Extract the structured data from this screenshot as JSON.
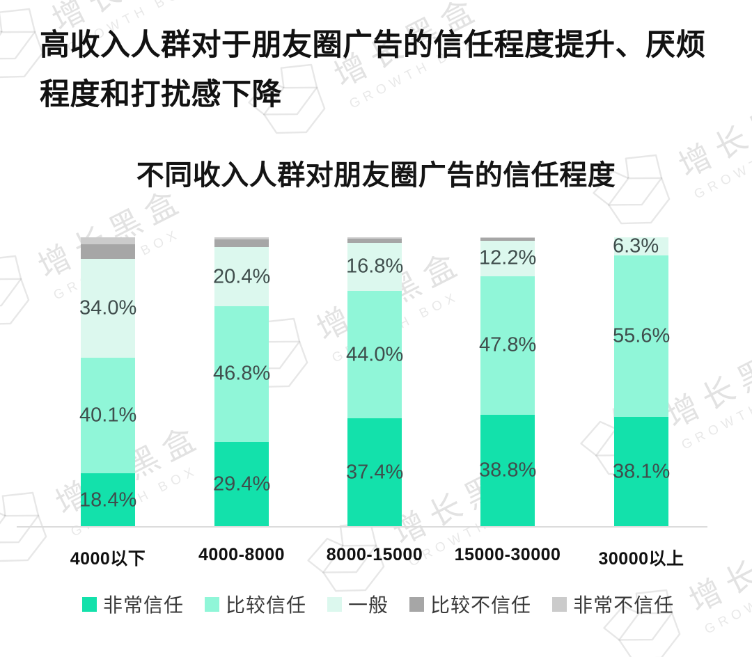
{
  "header": {
    "title_line1": "高收入人群对于朋友圈广告的信任程度提升、厌烦",
    "title_line2": "程度和打扰感下降"
  },
  "chart_data": {
    "type": "bar",
    "stacked": true,
    "title": "不同收入人群对朋友圈广告的信任程度",
    "unit": "%",
    "categories": [
      "4000以下",
      "4000-8000",
      "8000-15000",
      "15000-30000",
      "30000以上"
    ],
    "series": [
      {
        "name": "非常信任",
        "color": "#13E1AB",
        "values": [
          18.4,
          29.4,
          37.4,
          38.8,
          38.1
        ],
        "labels": [
          "18.4%",
          "29.4%",
          "37.4%",
          "38.8%",
          "38.1%"
        ]
      },
      {
        "name": "比较信任",
        "color": "#90F6D8",
        "values": [
          40.1,
          46.8,
          44.0,
          47.8,
          55.6
        ],
        "labels": [
          "40.1%",
          "46.8%",
          "44.0%",
          "47.8%",
          "55.6%"
        ]
      },
      {
        "name": "一般",
        "color": "#DCF8EE",
        "values": [
          34.0,
          20.4,
          16.8,
          12.2,
          6.3
        ],
        "labels": [
          "34.0%",
          "20.4%",
          "16.8%",
          "12.2%",
          "6.3%"
        ]
      },
      {
        "name": "比较不信任",
        "color": "#A6A6A6",
        "values": [
          5.2,
          2.6,
          1.4,
          1.0,
          0
        ],
        "labels": [
          "",
          "",
          "",
          "",
          ""
        ]
      },
      {
        "name": "非常不信任",
        "color": "#CBCBCB",
        "values": [
          2.3,
          0.8,
          0.4,
          0.2,
          0
        ],
        "labels": [
          "",
          "",
          "",
          "",
          ""
        ]
      }
    ],
    "ylim": [
      0,
      100
    ],
    "grid": false,
    "legend_position": "bottom"
  },
  "watermark": {
    "brand_cn": "增长黑盒",
    "brand_en": "GROWTH BOX"
  }
}
